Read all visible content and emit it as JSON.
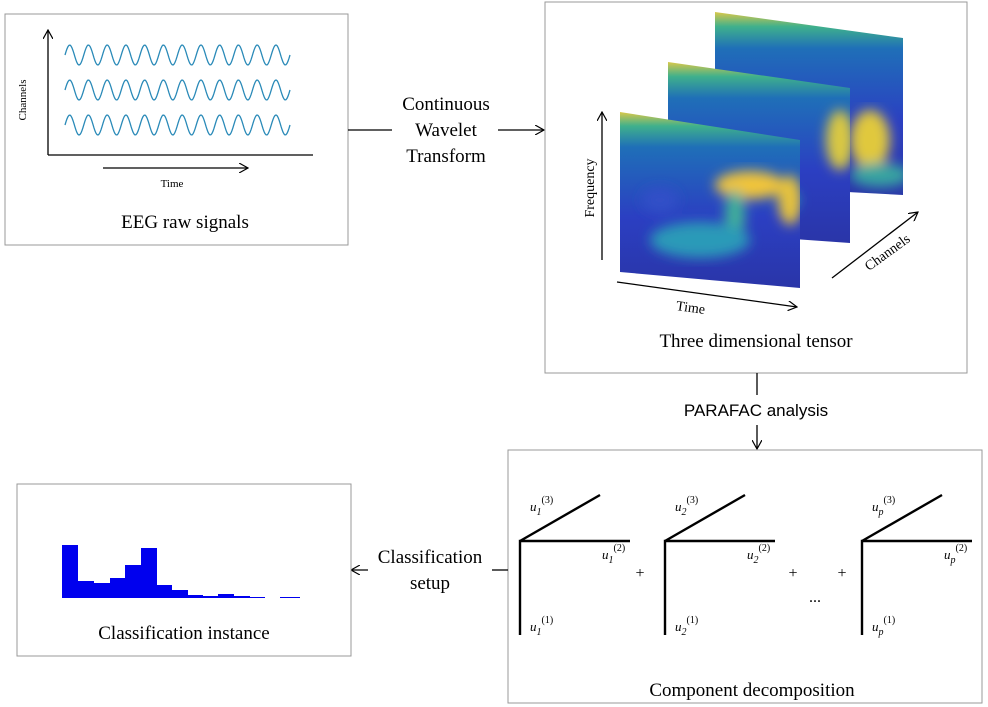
{
  "raw_signals": {
    "y_axis": "Channels",
    "x_axis": "Time",
    "caption": "EEG raw signals"
  },
  "transform": {
    "lines": [
      "Continuous",
      "Wavelet",
      "Transform"
    ]
  },
  "tensor": {
    "y_axis": "Frequency",
    "x_axis": "Time",
    "z_axis": "Channels",
    "caption": "Three dimensional tensor"
  },
  "analysis": {
    "label": "PARAFAC analysis"
  },
  "decomposition": {
    "components": [
      {
        "labels": [
          {
            "base": "u",
            "sub": "1",
            "sup": "(3)"
          },
          {
            "base": "u",
            "sub": "1",
            "sup": "(2)"
          },
          {
            "base": "u",
            "sub": "1",
            "sup": "(1)"
          }
        ]
      },
      {
        "labels": [
          {
            "base": "u",
            "sub": "2",
            "sup": "(3)"
          },
          {
            "base": "u",
            "sub": "2",
            "sup": "(2)"
          },
          {
            "base": "u",
            "sub": "2",
            "sup": "(1)"
          }
        ]
      },
      {
        "labels": [
          {
            "base": "u",
            "sub": "p",
            "sup": "(3)"
          },
          {
            "base": "u",
            "sub": "p",
            "sup": "(2)"
          },
          {
            "base": "u",
            "sub": "p",
            "sup": "(1)"
          }
        ]
      }
    ],
    "operators": [
      "+",
      "+",
      "...",
      "+"
    ],
    "caption": "Component decomposition"
  },
  "setup": {
    "lines": [
      "Classification",
      "setup"
    ]
  },
  "instance": {
    "caption": "Classification instance"
  }
}
